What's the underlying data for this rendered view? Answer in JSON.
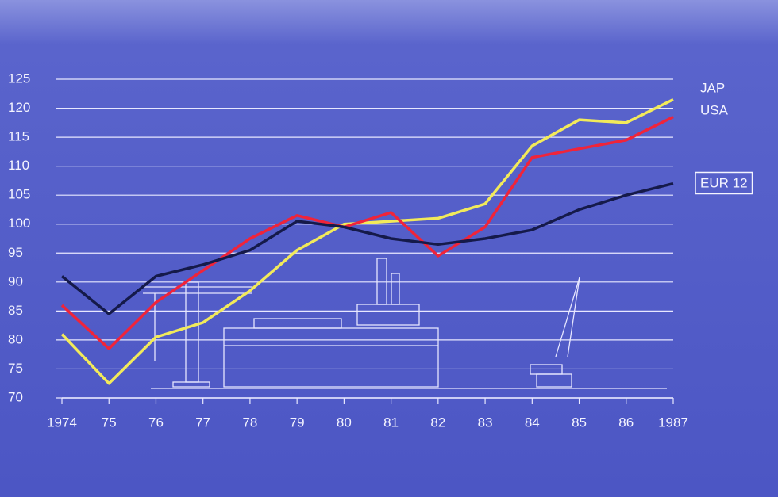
{
  "chart_data": {
    "type": "line",
    "categories": [
      "1974",
      "75",
      "76",
      "77",
      "78",
      "79",
      "80",
      "81",
      "82",
      "83",
      "84",
      "85",
      "86",
      "1987"
    ],
    "series": [
      {
        "name": "JAP",
        "color": "#f2ea5a",
        "values": [
          81,
          72.5,
          80.5,
          83,
          88.5,
          95.5,
          100,
          100.5,
          101,
          103.5,
          113.5,
          118,
          117.5,
          121.5
        ]
      },
      {
        "name": "USA",
        "color": "#f0243a",
        "values": [
          86,
          78.5,
          86.5,
          92,
          97.5,
          101.5,
          99.5,
          102,
          94.5,
          99.5,
          111.5,
          113,
          114.5,
          118.5
        ]
      },
      {
        "name": "EUR 12",
        "color": "#151a4a",
        "values": [
          91,
          84.5,
          91,
          93,
          95.5,
          100.5,
          99.5,
          97.5,
          96.5,
          97.5,
          99,
          102.5,
          105,
          107
        ]
      }
    ],
    "ylim": [
      70,
      125
    ],
    "yticks": [
      70,
      75,
      80,
      85,
      90,
      95,
      100,
      105,
      110,
      115,
      120,
      125
    ],
    "grid": true
  }
}
